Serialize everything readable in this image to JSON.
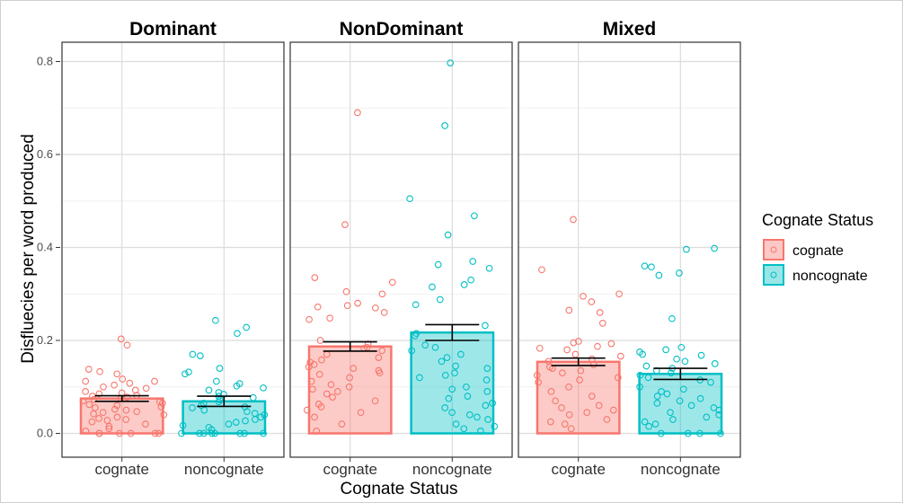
{
  "chart_data": {
    "type": "bar",
    "facets": [
      "Dominant",
      "NonDominant",
      "Mixed"
    ],
    "categories": [
      "cognate",
      "noncognate"
    ],
    "xlabel": "Cognate Status",
    "ylabel": "Disfluecies per word produced",
    "ylim": [
      0,
      0.82
    ],
    "yticks": [
      "0.0",
      "0.2",
      "0.4",
      "0.6",
      "0.8"
    ],
    "yticks_values": [
      0,
      0.2,
      0.4,
      0.6,
      0.8
    ],
    "grid": true,
    "legend": {
      "title": "Cognate Status",
      "placement": "right",
      "entries": [
        {
          "name": "cognate",
          "color": "#f8766d"
        },
        {
          "name": "noncognate",
          "color": "#00bfc4"
        }
      ]
    },
    "colors": {
      "cognate": "#f8766d",
      "noncognate": "#00bfc4"
    },
    "bars": [
      {
        "facet": "Dominant",
        "category": "cognate",
        "value": 0.075,
        "se": 0.006
      },
      {
        "facet": "Dominant",
        "category": "noncognate",
        "value": 0.069,
        "se": 0.011
      },
      {
        "facet": "NonDominant",
        "category": "cognate",
        "value": 0.187,
        "se": 0.01
      },
      {
        "facet": "NonDominant",
        "category": "noncognate",
        "value": 0.217,
        "se": 0.017
      },
      {
        "facet": "Mixed",
        "category": "cognate",
        "value": 0.154,
        "se": 0.008
      },
      {
        "facet": "Mixed",
        "category": "noncognate",
        "value": 0.128,
        "se": 0.012
      }
    ],
    "points": {
      "Dominant": {
        "cognate": [
          0.203,
          0.19,
          0.138,
          0.133,
          0.128,
          0.117,
          0.112,
          0.112,
          0.108,
          0.104,
          0.1,
          0.097,
          0.093,
          0.09,
          0.087,
          0.085,
          0.082,
          0.08,
          0.078,
          0.075,
          0.073,
          0.07,
          0.068,
          0.065,
          0.062,
          0.06,
          0.057,
          0.055,
          0.052,
          0.05,
          0.047,
          0.045,
          0.042,
          0.04,
          0.035,
          0.032,
          0.03,
          0.028,
          0.025,
          0.02,
          0.015,
          0.01,
          0.005,
          0.0,
          0.0,
          0.0,
          0.0,
          0.0,
          0.0
        ],
        "noncognate": [
          0.243,
          0.228,
          0.215,
          0.17,
          0.167,
          0.14,
          0.132,
          0.128,
          0.112,
          0.107,
          0.102,
          0.098,
          0.093,
          0.088,
          0.084,
          0.08,
          0.077,
          0.072,
          0.068,
          0.065,
          0.06,
          0.057,
          0.055,
          0.05,
          0.047,
          0.043,
          0.04,
          0.035,
          0.03,
          0.027,
          0.024,
          0.02,
          0.017,
          0.013,
          0.008,
          0.0,
          0.0,
          0.0,
          0.0,
          0.0,
          0.0,
          0.0,
          0.0
        ]
      },
      "NonDominant": {
        "cognate": [
          0.69,
          0.449,
          0.335,
          0.325,
          0.305,
          0.3,
          0.28,
          0.275,
          0.272,
          0.27,
          0.26,
          0.248,
          0.245,
          0.2,
          0.192,
          0.185,
          0.183,
          0.178,
          0.17,
          0.163,
          0.158,
          0.153,
          0.148,
          0.143,
          0.14,
          0.135,
          0.13,
          0.127,
          0.12,
          0.112,
          0.105,
          0.1,
          0.095,
          0.09,
          0.085,
          0.078,
          0.07,
          0.063,
          0.057,
          0.05,
          0.045,
          0.035,
          0.02,
          0.005
        ],
        "noncognate": [
          0.797,
          0.662,
          0.505,
          0.468,
          0.427,
          0.37,
          0.363,
          0.355,
          0.33,
          0.32,
          0.315,
          0.288,
          0.277,
          0.232,
          0.215,
          0.21,
          0.19,
          0.185,
          0.178,
          0.17,
          0.163,
          0.155,
          0.145,
          0.14,
          0.13,
          0.125,
          0.12,
          0.115,
          0.1,
          0.095,
          0.09,
          0.08,
          0.075,
          0.065,
          0.06,
          0.055,
          0.045,
          0.04,
          0.035,
          0.03,
          0.02,
          0.015,
          0.01,
          0.005
        ]
      },
      "Mixed": {
        "cognate": [
          0.46,
          0.352,
          0.3,
          0.295,
          0.283,
          0.265,
          0.26,
          0.237,
          0.198,
          0.195,
          0.193,
          0.187,
          0.183,
          0.18,
          0.17,
          0.166,
          0.16,
          0.155,
          0.148,
          0.143,
          0.14,
          0.135,
          0.13,
          0.125,
          0.12,
          0.115,
          0.11,
          0.1,
          0.09,
          0.08,
          0.07,
          0.06,
          0.055,
          0.05,
          0.045,
          0.04,
          0.03,
          0.025,
          0.02,
          0.01
        ],
        "noncognate": [
          0.398,
          0.396,
          0.36,
          0.358,
          0.345,
          0.34,
          0.247,
          0.185,
          0.18,
          0.175,
          0.17,
          0.168,
          0.16,
          0.155,
          0.15,
          0.145,
          0.14,
          0.135,
          0.13,
          0.125,
          0.12,
          0.115,
          0.11,
          0.1,
          0.095,
          0.09,
          0.085,
          0.08,
          0.075,
          0.07,
          0.065,
          0.06,
          0.055,
          0.05,
          0.045,
          0.04,
          0.035,
          0.03,
          0.025,
          0.02,
          0.015,
          0.0,
          0.0,
          0.0,
          0.0
        ]
      }
    }
  }
}
